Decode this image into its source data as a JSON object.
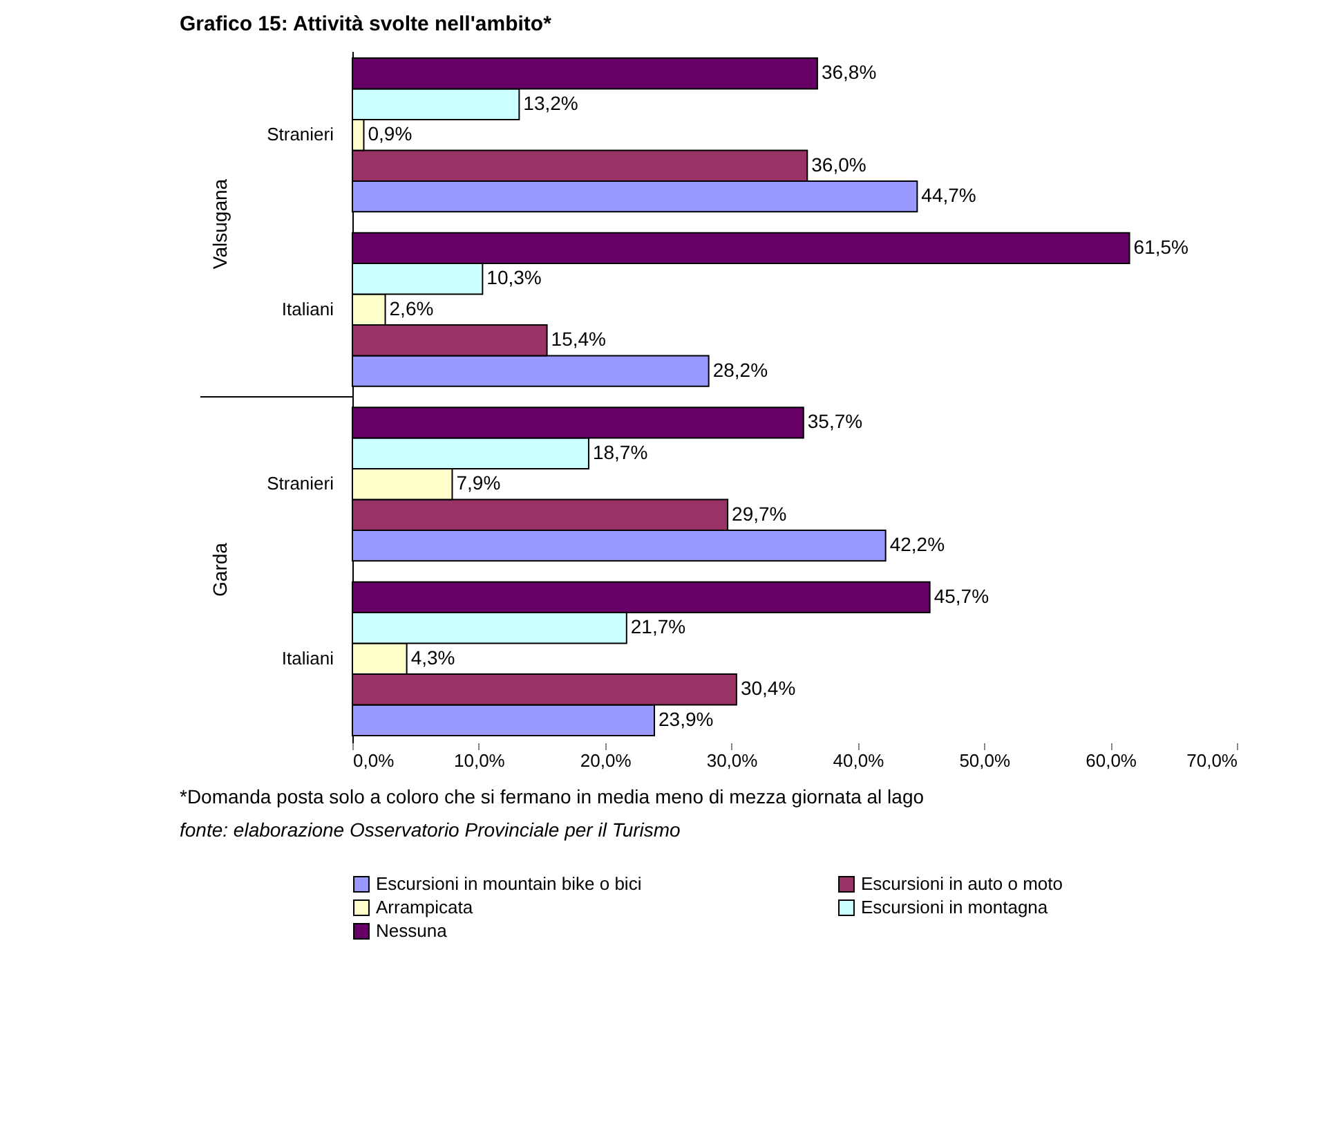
{
  "chart_data": {
    "type": "bar",
    "orientation": "horizontal",
    "title": "Grafico 15: Attività svolte nell'ambito*",
    "categories": [
      "Stranieri",
      "Italiani",
      "Stranieri",
      "Italiani"
    ],
    "series": [
      {
        "name": "Escursioni in mountain bike o bici",
        "color": "#9999ff",
        "values": [
          44.7,
          28.2,
          42.2,
          23.9
        ],
        "value_labels": [
          "44,7%",
          "28,2%",
          "42,2%",
          "23,9%"
        ]
      },
      {
        "name": "Escursioni in auto o moto",
        "color": "#993366",
        "values": [
          36.0,
          15.4,
          29.7,
          30.4
        ],
        "value_labels": [
          "36,0%",
          "15,4%",
          "29,7%",
          "30,4%"
        ]
      },
      {
        "name": "Arrampicata",
        "color": "#ffffcc",
        "values": [
          0.9,
          2.6,
          7.9,
          4.3
        ],
        "value_labels": [
          "0,9%",
          "2,6%",
          "7,9%",
          "4,3%"
        ]
      },
      {
        "name": "Escursioni in montagna",
        "color": "#ccffff",
        "values": [
          13.2,
          10.3,
          18.7,
          21.7
        ],
        "value_labels": [
          "13,2%",
          "10,3%",
          "18,7%",
          "21,7%"
        ]
      },
      {
        "name": "Nessuna",
        "color": "#660066",
        "values": [
          36.8,
          61.5,
          35.7,
          45.7
        ],
        "value_labels": [
          "36,8%",
          "61,5%",
          "35,7%",
          "45,7%"
        ]
      }
    ],
    "xlim": [
      0,
      70
    ],
    "xticks": [
      {
        "value": 0,
        "label": "0,0%"
      },
      {
        "value": 10,
        "label": "10,0%"
      },
      {
        "value": 20,
        "label": "20,0%"
      },
      {
        "value": 30,
        "label": "30,0%"
      },
      {
        "value": 40,
        "label": "40,0%"
      },
      {
        "value": 50,
        "label": "50,0%"
      },
      {
        "value": 60,
        "label": "60,0%"
      },
      {
        "value": 70,
        "label": "70,0%"
      }
    ],
    "grid": false,
    "legend": "bottom",
    "annotations": [
      "Valsugana",
      "Garda",
      "*Domanda posta solo a coloro che si fermano in media meno di mezza giornata al lago",
      "fonte: elaborazione Osservatorio Provinciale per il Turismo"
    ]
  }
}
